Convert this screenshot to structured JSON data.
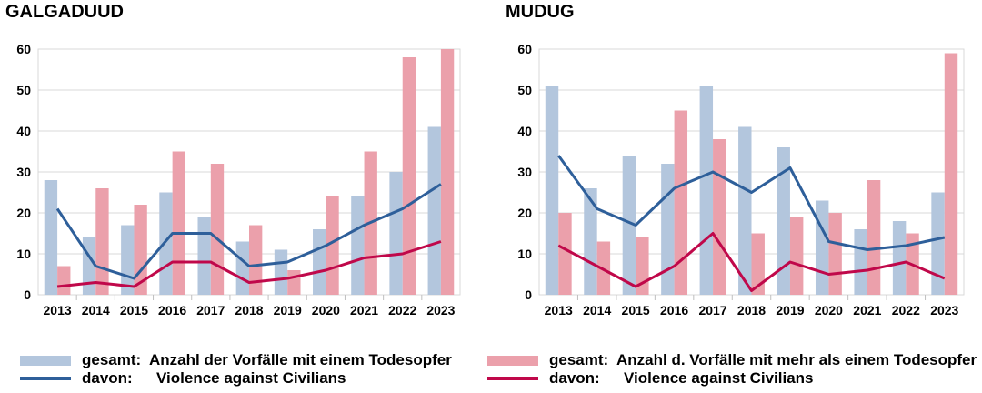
{
  "colors": {
    "gesamt_single": "#b3c6dd",
    "gesamt_multi": "#eba0ab",
    "vac_blue": "#2e5f9a",
    "vac_red": "#c0084a",
    "grid": "#d9d9d9"
  },
  "legend": {
    "single": {
      "prefix": "gesamt:",
      "text": "Anzahl der Vorfälle mit einem Todesopfer"
    },
    "vac_blue": {
      "prefix": "davon:",
      "text": "Violence against Civilians"
    },
    "multi": {
      "prefix": "gesamt:",
      "text": "Anzahl d. Vorfälle mit mehr als einem Todesopfer"
    },
    "vac_red": {
      "prefix": "davon:",
      "text": "Violence against Civilians"
    }
  },
  "chart_data": [
    {
      "type": "bar",
      "title": "GALGADUUD",
      "categories": [
        "2013",
        "2014",
        "2015",
        "2016",
        "2017",
        "2018",
        "2019",
        "2020",
        "2021",
        "2022",
        "2023"
      ],
      "ylim": [
        0,
        60
      ],
      "yticks": [
        0,
        10,
        20,
        30,
        40,
        50,
        60
      ],
      "grid": true,
      "series": [
        {
          "name": "gesamt: Anzahl der Vorfälle mit einem Todesopfer",
          "kind": "bar",
          "color": "#b3c6dd",
          "values": [
            28,
            14,
            17,
            25,
            19,
            13,
            11,
            16,
            24,
            30,
            41
          ]
        },
        {
          "name": "gesamt: Anzahl d. Vorfälle mit mehr als einem Todesopfer",
          "kind": "bar",
          "color": "#eba0ab",
          "values": [
            7,
            26,
            22,
            35,
            32,
            17,
            6,
            24,
            35,
            58,
            60
          ]
        },
        {
          "name": "davon: Violence against Civilians",
          "kind": "line",
          "color": "#2e5f9a",
          "values": [
            21,
            7,
            4,
            15,
            15,
            7,
            8,
            12,
            17,
            21,
            27
          ]
        },
        {
          "name": "davon: Violence against Civilians",
          "kind": "line",
          "color": "#c0084a",
          "values": [
            2,
            3,
            2,
            8,
            8,
            3,
            4,
            6,
            9,
            10,
            13
          ]
        }
      ]
    },
    {
      "type": "bar",
      "title": "MUDUG",
      "categories": [
        "2013",
        "2014",
        "2015",
        "2016",
        "2017",
        "2018",
        "2019",
        "2020",
        "2021",
        "2022",
        "2023"
      ],
      "ylim": [
        0,
        60
      ],
      "yticks": [
        0,
        10,
        20,
        30,
        40,
        50,
        60
      ],
      "grid": true,
      "series": [
        {
          "name": "gesamt: Anzahl der Vorfälle mit einem Todesopfer",
          "kind": "bar",
          "color": "#b3c6dd",
          "values": [
            51,
            26,
            34,
            32,
            51,
            41,
            36,
            23,
            16,
            18,
            25
          ]
        },
        {
          "name": "gesamt: Anzahl d. Vorfälle mit mehr als einem Todesopfer",
          "kind": "bar",
          "color": "#eba0ab",
          "values": [
            20,
            13,
            14,
            45,
            38,
            15,
            19,
            20,
            28,
            15,
            59
          ]
        },
        {
          "name": "davon: Violence against Civilians",
          "kind": "line",
          "color": "#2e5f9a",
          "values": [
            34,
            21,
            17,
            26,
            30,
            25,
            31,
            13,
            11,
            12,
            14
          ]
        },
        {
          "name": "davon: Violence against Civilians",
          "kind": "line",
          "color": "#c0084a",
          "values": [
            12,
            7,
            2,
            7,
            15,
            1,
            8,
            5,
            6,
            8,
            4
          ]
        }
      ]
    }
  ]
}
